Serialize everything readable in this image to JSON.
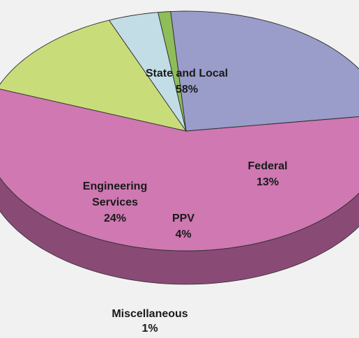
{
  "chart_data": {
    "type": "pie",
    "title": "",
    "slices": [
      {
        "name": "State and Local",
        "label_lines": [
          "State and Local"
        ],
        "value": 58,
        "value_label": "58%",
        "color": "#cf78b2",
        "side_color": "#8a4a76"
      },
      {
        "name": "Federal",
        "label_lines": [
          "Federal"
        ],
        "value": 13,
        "value_label": "13%",
        "color": "#c9dc7a",
        "side_color": "#7d8d3e"
      },
      {
        "name": "PPV",
        "label_lines": [
          "PPV"
        ],
        "value": 4,
        "value_label": "4%",
        "color": "#c2dde6",
        "side_color": "#7d97a3"
      },
      {
        "name": "Miscellaneous",
        "label_lines": [
          "Miscellaneous"
        ],
        "value": 1,
        "value_label": "1%",
        "color": "#8ebd5a",
        "side_color": "#55763a"
      },
      {
        "name": "Engineering Services",
        "label_lines": [
          "Engineering",
          "Services"
        ],
        "value": 24,
        "value_label": "24%",
        "color": "#9a9cc9",
        "side_color": "#4a4c70"
      }
    ],
    "three_d": true,
    "legend": "none"
  }
}
